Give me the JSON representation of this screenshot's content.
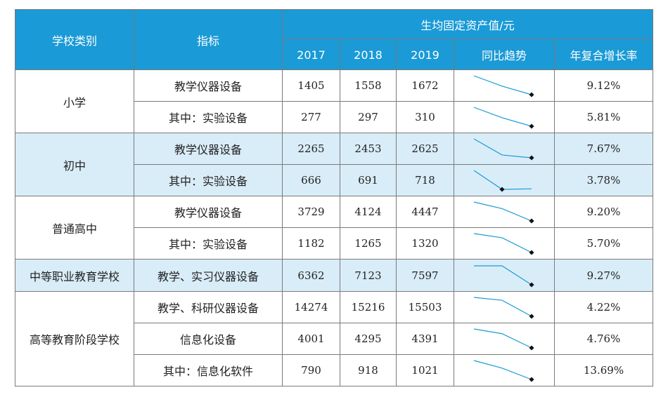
{
  "header": {
    "category": "学校类别",
    "indicator": "指标",
    "group": "生均固定资产值/元",
    "years": [
      "2017",
      "2018",
      "2019"
    ],
    "trend": "同比趋势",
    "cagr": "年复合增长率"
  },
  "groups": [
    {
      "category": "小学",
      "shaded": false,
      "rows": [
        {
          "indicator": "教学仪器设备",
          "values": [
            "1405",
            "1558",
            "1672"
          ],
          "cagr": "9.12%"
        },
        {
          "indicator": "其中：实验设备",
          "values": [
            "277",
            "297",
            "310"
          ],
          "cagr": "5.81%"
        }
      ]
    },
    {
      "category": "初中",
      "shaded": true,
      "rows": [
        {
          "indicator": "教学仪器设备",
          "values": [
            "2265",
            "2453",
            "2625"
          ],
          "cagr": "7.67%"
        },
        {
          "indicator": "其中：实验设备",
          "values": [
            "666",
            "691",
            "718"
          ],
          "cagr": "3.78%"
        }
      ]
    },
    {
      "category": "普通高中",
      "shaded": false,
      "rows": [
        {
          "indicator": "教学仪器设备",
          "values": [
            "3729",
            "4124",
            "4447"
          ],
          "cagr": "9.20%"
        },
        {
          "indicator": "其中：实验设备",
          "values": [
            "1182",
            "1265",
            "1320"
          ],
          "cagr": "5.70%"
        }
      ]
    },
    {
      "category": "中等职业教育学校",
      "shaded": true,
      "rows": [
        {
          "indicator": "教学、实习仪器设备",
          "values": [
            "6362",
            "7123",
            "7597"
          ],
          "cagr": "9.27%"
        }
      ]
    },
    {
      "category": "高等教育阶段学校",
      "shaded": false,
      "rows": [
        {
          "indicator": "教学、科研仪器设备",
          "values": [
            "14274",
            "15216",
            "15503"
          ],
          "cagr": "4.22%"
        },
        {
          "indicator": "信息化设备",
          "values": [
            "4001",
            "4295",
            "4391"
          ],
          "cagr": "4.76%"
        },
        {
          "indicator": "其中：信息化软件",
          "values": [
            "790",
            "918",
            "1021"
          ],
          "cagr": "13.69%"
        }
      ]
    }
  ],
  "trend_sparklines": [
    {
      "y": [
        0.0,
        0.55,
        1.0
      ]
    },
    {
      "y": [
        0.0,
        0.55,
        1.0
      ]
    },
    {
      "y": [
        0.0,
        0.85,
        1.0
      ]
    },
    {
      "y": [
        0.0,
        1.0,
        0.97
      ]
    },
    {
      "y": [
        0.0,
        0.35,
        1.0
      ]
    },
    {
      "y": [
        0.0,
        0.22,
        1.0
      ]
    },
    {
      "y": [
        0.0,
        0.0,
        1.0
      ]
    },
    {
      "y": [
        0.0,
        0.15,
        1.0
      ]
    },
    {
      "y": [
        0.0,
        0.25,
        1.0
      ]
    },
    {
      "y": [
        0.0,
        0.4,
        1.0
      ]
    }
  ],
  "colors": {
    "header_bg": "#1a9ad6",
    "shaded_row_bg": "#d9edf8",
    "sparkline": "#1a9ad6",
    "marker": "#111111"
  }
}
